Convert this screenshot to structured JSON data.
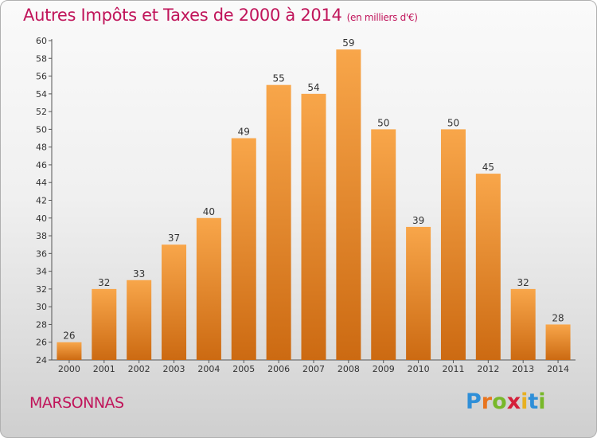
{
  "header": {
    "title": "Autres Impôts et Taxes de 2000 à 2014",
    "subtitle": "(en milliers d'€)"
  },
  "footer": {
    "place": "MARSONNAS",
    "logo_letters": [
      "P",
      "r",
      "o",
      "x",
      "i",
      "t",
      "i"
    ],
    "logo_colors": [
      "#2f8fd8",
      "#e8741e",
      "#78b82a",
      "#d4203a",
      "#e8b020",
      "#2f8fd8",
      "#78b82a"
    ]
  },
  "colors": {
    "bar_light": "#f8a64a",
    "bar_dark": "#cc6a12",
    "accent": "#c0145a",
    "grid": "#c8c8c8"
  },
  "chart_data": {
    "type": "bar",
    "title": "Autres Impôts et Taxes de 2000 à 2014",
    "subtitle": "(en milliers d'€)",
    "xlabel": "",
    "ylabel": "",
    "categories": [
      "2000",
      "2001",
      "2002",
      "2003",
      "2004",
      "2005",
      "2006",
      "2007",
      "2008",
      "2009",
      "2010",
      "2011",
      "2012",
      "2013",
      "2014"
    ],
    "values": [
      26,
      32,
      33,
      37,
      40,
      49,
      55,
      54,
      59,
      50,
      39,
      50,
      45,
      32,
      28
    ],
    "ylim": [
      24,
      60
    ],
    "yticks": [
      24,
      26,
      28,
      30,
      32,
      34,
      36,
      38,
      40,
      42,
      44,
      46,
      48,
      50,
      52,
      54,
      56,
      58,
      60
    ],
    "grid": false
  }
}
